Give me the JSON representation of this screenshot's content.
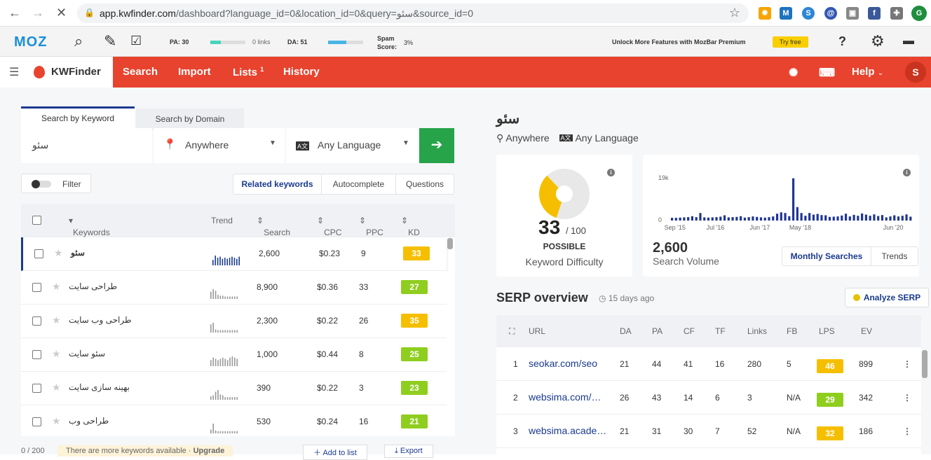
{
  "browser": {
    "url_host": "app.kwfinder.com",
    "url_path": "/dashboard?language_id=0&location_id=0&query=سئو&source_id=0",
    "profile_initial": "G"
  },
  "mozbar": {
    "logo": "MOZ",
    "pa_label": "PA: 30",
    "links_label": "0 links",
    "da_label": "DA: 51",
    "spam_label": "Spam Score:",
    "spam_value": "3%",
    "promo_text": "Unlock More Features with MozBar Premium",
    "try_label": "Try free",
    "pa_fraction": 0.3,
    "da_fraction": 0.51
  },
  "header": {
    "brand": "KWFinder",
    "nav": [
      "Search",
      "Import",
      "Lists",
      "History"
    ],
    "lists_badge": "1",
    "help": "Help",
    "avatar": "S"
  },
  "search": {
    "tabs": [
      "Search by Keyword",
      "Search by Domain"
    ],
    "query": "سئو",
    "location": "Anywhere",
    "language": "Any Language",
    "filter_label": "Filter",
    "modes": [
      "Related keywords",
      "Autocomplete",
      "Questions"
    ]
  },
  "table": {
    "columns": [
      "Keywords",
      "Trend",
      "Search",
      "CPC",
      "PPC",
      "KD"
    ],
    "rows": [
      {
        "kw": "سئو",
        "search": "2,600",
        "cpc": "$0.23",
        "ppc": "9",
        "kd": "33",
        "trend": [
          5,
          9,
          7,
          8,
          6,
          7,
          6,
          7,
          8,
          7,
          6,
          8
        ]
      },
      {
        "kw": "طراحی سایت",
        "search": "8,900",
        "cpc": "$0.36",
        "ppc": "33",
        "kd": "27",
        "trend": [
          9,
          12,
          10,
          5,
          4,
          4,
          3,
          3,
          3,
          3,
          3,
          3
        ]
      },
      {
        "kw": "طراحی وب سایت",
        "search": "2,300",
        "cpc": "$0.22",
        "ppc": "26",
        "kd": "35",
        "trend": [
          10,
          12,
          4,
          3,
          3,
          3,
          3,
          3,
          3,
          3,
          3,
          3
        ]
      },
      {
        "kw": "سئو سایت",
        "search": "1,000",
        "cpc": "$0.44",
        "ppc": "8",
        "kd": "25",
        "trend": [
          5,
          7,
          6,
          5,
          6,
          7,
          6,
          5,
          7,
          8,
          7,
          6
        ]
      },
      {
        "kw": "بهینه سازی سایت",
        "search": "390",
        "cpc": "$0.22",
        "ppc": "3",
        "kd": "23",
        "trend": [
          4,
          5,
          9,
          11,
          6,
          5,
          3,
          3,
          3,
          3,
          3,
          3
        ]
      },
      {
        "kw": "طراحی وب",
        "search": "530",
        "cpc": "$0.24",
        "ppc": "16",
        "kd": "21",
        "trend": [
          5,
          13,
          4,
          3,
          3,
          3,
          3,
          3,
          3,
          3,
          3,
          3
        ]
      }
    ],
    "footer_count": "0 / 200",
    "footer_note": "There are more keywords available",
    "upgrade": "Upgrade",
    "add_to_list": "Add to list",
    "export": "Export"
  },
  "detail": {
    "keyword": "سئو",
    "location": "Anywhere",
    "language": "Any Language",
    "kd_value": "33",
    "kd_max": "/ 100",
    "kd_label": "POSSIBLE",
    "kd_sub": "Keyword Difficulty",
    "kd_fraction": 0.33,
    "volume": "2,600",
    "volume_label": "Search Volume",
    "vol_tabs": [
      "Monthly Searches",
      "Trends"
    ]
  },
  "chart_data": {
    "type": "bar",
    "y_ticks": [
      "19k",
      "0"
    ],
    "ylim": [
      0,
      19000
    ],
    "x_ticks": [
      "Sep '15",
      "Jul '16",
      "Jun '17",
      "May '18",
      "Jun '20"
    ],
    "values": [
      1200,
      1200,
      1300,
      1400,
      1500,
      1900,
      1500,
      3300,
      1400,
      1300,
      1400,
      1500,
      1700,
      2300,
      1400,
      1500,
      1600,
      1900,
      1300,
      1500,
      1800,
      1600,
      1400,
      1300,
      1500,
      1800,
      3000,
      3600,
      3300,
      1900,
      18500,
      5900,
      3300,
      2100,
      3300,
      2600,
      2900,
      2400,
      2300,
      1600,
      1700,
      1800,
      2200,
      3000,
      1800,
      2500,
      2100,
      3100,
      2600,
      2100,
      2700,
      2000,
      2400,
      1400,
      1800,
      2300,
      1800,
      2100,
      2700,
      1700
    ]
  },
  "serp": {
    "title": "SERP overview",
    "ago": "15 days ago",
    "analyze": "Analyze SERP",
    "columns": [
      "URL",
      "DA",
      "PA",
      "CF",
      "TF",
      "Links",
      "FB",
      "LPS",
      "EV"
    ],
    "rows": [
      {
        "n": "1",
        "url": "seokar.com/seo",
        "da": "21",
        "pa": "44",
        "cf": "41",
        "tf": "16",
        "links": "280",
        "fb": "5",
        "lps": "46",
        "ev": "899"
      },
      {
        "n": "2",
        "url": "websima.com/طراحی-سایت",
        "da": "26",
        "pa": "43",
        "cf": "14",
        "tf": "6",
        "links": "3",
        "fb": "N/A",
        "lps": "29",
        "ev": "342"
      },
      {
        "n": "3",
        "url": "websima.academy/seo",
        "da": "21",
        "pa": "31",
        "cf": "30",
        "tf": "7",
        "links": "52",
        "fb": "N/A",
        "lps": "32",
        "ev": "186"
      }
    ]
  },
  "colors": {
    "kd_green": "#8fce1f",
    "kd_yellow": "#f5bf00",
    "brand_red": "#e8432e",
    "navy": "#1a3a8f"
  }
}
